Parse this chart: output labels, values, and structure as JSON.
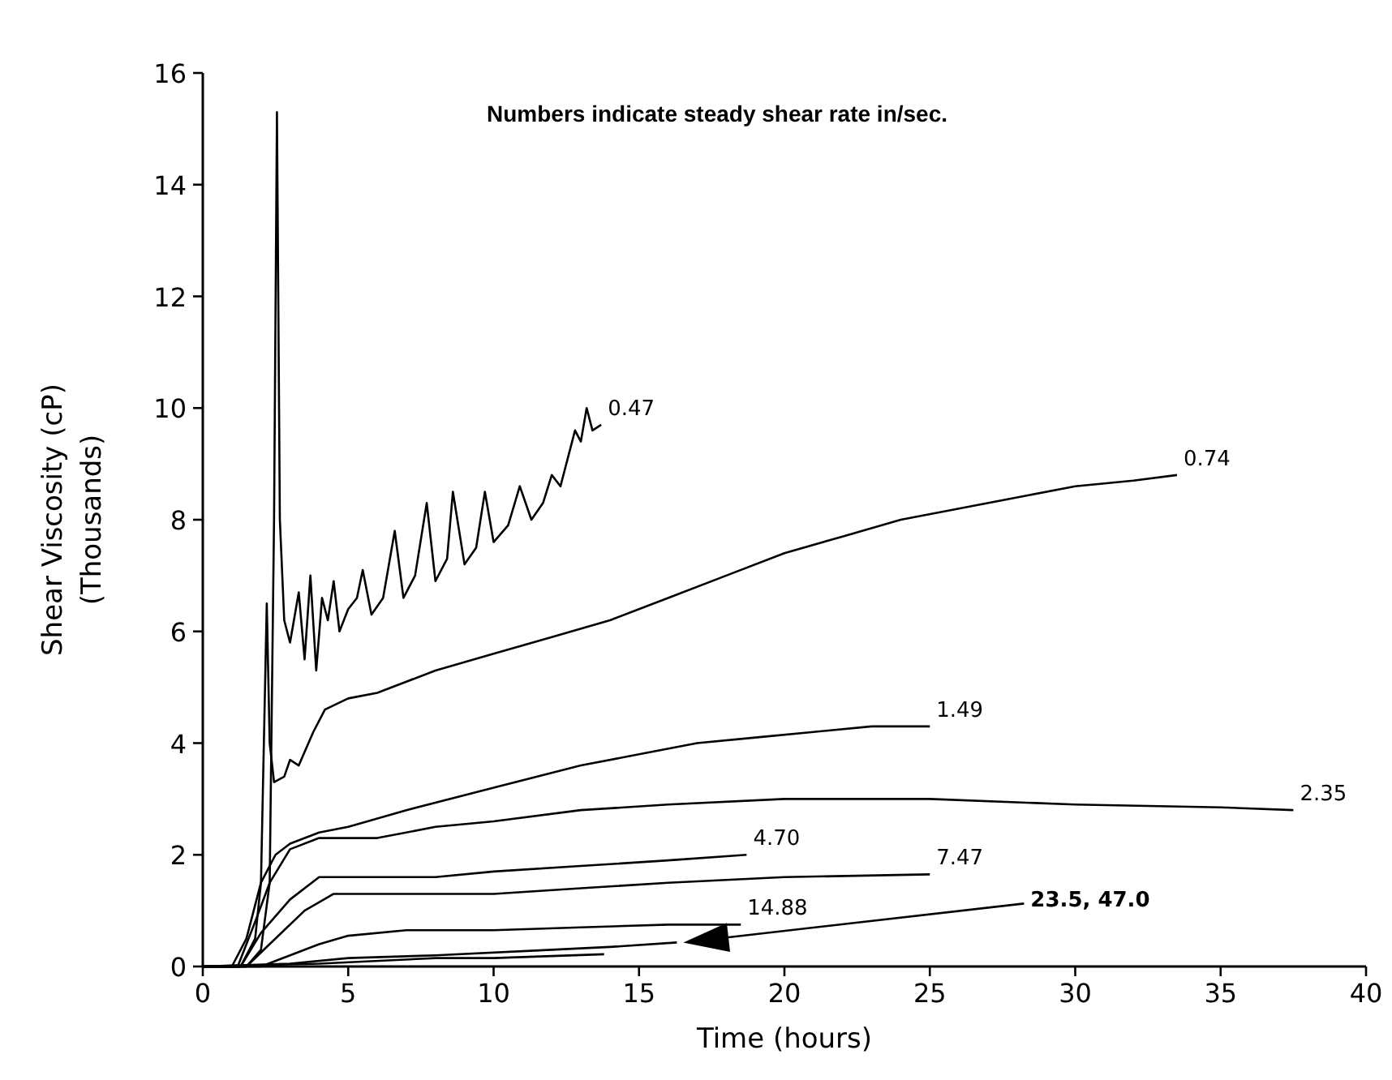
{
  "chart_data": {
    "type": "line",
    "xlabel": "Time (hours)",
    "ylabel": "Shear Viscosity (cP)\n(Thousands)",
    "xlim": [
      0,
      40
    ],
    "xticks": [
      0,
      5,
      10,
      15,
      20,
      25,
      30,
      35,
      40
    ],
    "ylim": [
      0,
      16
    ],
    "yticks": [
      0,
      2,
      4,
      6,
      8,
      10,
      12,
      14,
      16
    ],
    "grid": false,
    "marker": "none",
    "line_style": "solid",
    "annotations": [
      "Numbers indicate steady shear rate in/sec.",
      "23.5,  47.0"
    ],
    "series": [
      {
        "name": "0.47",
        "color": "#000000",
        "x": [
          0,
          1.5,
          2.0,
          2.3,
          2.45,
          2.55,
          2.65,
          2.8,
          3.0,
          3.3,
          3.5,
          3.7,
          3.9,
          4.1,
          4.3,
          4.5,
          4.7,
          5.0,
          5.3,
          5.5,
          5.8,
          6.2,
          6.6,
          6.9,
          7.3,
          7.7,
          8.0,
          8.4,
          8.6,
          9.0,
          9.4,
          9.7,
          10.0,
          10.5,
          10.9,
          11.3,
          11.7,
          12.0,
          12.3,
          12.8,
          13.0,
          13.2,
          13.4,
          13.7
        ],
        "values": [
          0,
          0,
          0.3,
          1.5,
          8,
          15.3,
          8,
          6.2,
          5.8,
          6.7,
          5.5,
          7.0,
          5.3,
          6.6,
          6.2,
          6.9,
          6.0,
          6.4,
          6.6,
          7.1,
          6.3,
          6.6,
          7.8,
          6.6,
          7.0,
          8.3,
          6.9,
          7.3,
          8.5,
          7.2,
          7.5,
          8.5,
          7.6,
          7.9,
          8.6,
          8.0,
          8.3,
          8.8,
          8.6,
          9.6,
          9.4,
          10.0,
          9.6,
          9.7
        ]
      },
      {
        "name": "0.74",
        "color": "#000000",
        "x": [
          0,
          1.3,
          1.8,
          2.0,
          2.1,
          2.2,
          2.3,
          2.45,
          2.8,
          3.0,
          3.3,
          3.8,
          4.2,
          5,
          6,
          7,
          8,
          10,
          12,
          14,
          16,
          18,
          20,
          22,
          24,
          26,
          28,
          30,
          32,
          33.5
        ],
        "values": [
          0,
          0,
          0.5,
          1.5,
          4,
          6.5,
          4,
          3.3,
          3.4,
          3.7,
          3.6,
          4.2,
          4.6,
          4.8,
          4.9,
          5.1,
          5.3,
          5.6,
          5.9,
          6.2,
          6.6,
          7.0,
          7.4,
          7.7,
          8.0,
          8.2,
          8.4,
          8.6,
          8.7,
          8.8
        ]
      },
      {
        "name": "1.49",
        "color": "#000000",
        "x": [
          0,
          1.0,
          1.5,
          2.0,
          2.5,
          3,
          4,
          5,
          7,
          10,
          13,
          15,
          17,
          19,
          21,
          23,
          25
        ],
        "values": [
          0,
          0,
          0.5,
          1.5,
          2.0,
          2.2,
          2.4,
          2.5,
          2.8,
          3.2,
          3.6,
          3.8,
          4.0,
          4.1,
          4.2,
          4.3,
          4.3
        ]
      },
      {
        "name": "2.35",
        "color": "#000000",
        "x": [
          0,
          1.2,
          1.8,
          2.3,
          3,
          4,
          6,
          8,
          10,
          13,
          16,
          20,
          25,
          30,
          35,
          37.5
        ],
        "values": [
          0,
          0,
          0.8,
          1.5,
          2.1,
          2.3,
          2.3,
          2.5,
          2.6,
          2.8,
          2.9,
          3.0,
          3.0,
          2.9,
          2.85,
          2.8
        ]
      },
      {
        "name": "4.70",
        "color": "#000000",
        "x": [
          0,
          1.3,
          2,
          3,
          4,
          5,
          8,
          10,
          13,
          16,
          18.7
        ],
        "values": [
          0,
          0,
          0.6,
          1.2,
          1.6,
          1.6,
          1.6,
          1.7,
          1.8,
          1.9,
          2.0
        ]
      },
      {
        "name": "7.47",
        "color": "#000000",
        "x": [
          0,
          1.5,
          2.5,
          3.5,
          4.5,
          7,
          10,
          13,
          16,
          20,
          25
        ],
        "values": [
          0,
          0,
          0.5,
          1.0,
          1.3,
          1.3,
          1.3,
          1.4,
          1.5,
          1.6,
          1.65
        ]
      },
      {
        "name": "14.88",
        "color": "#000000",
        "x": [
          0,
          2,
          3,
          4,
          5,
          7,
          10,
          13,
          16,
          18.5
        ],
        "values": [
          0,
          0,
          0.2,
          0.4,
          0.55,
          0.65,
          0.65,
          0.7,
          0.75,
          0.75
        ]
      },
      {
        "color": "#000000",
        "x": [
          0,
          3,
          5,
          8,
          12,
          14,
          16.3
        ],
        "values": [
          0,
          0.05,
          0.15,
          0.2,
          0.3,
          0.35,
          0.43
        ]
      },
      {
        "color": "#000000",
        "x": [
          0,
          4,
          8,
          10,
          13.8
        ],
        "values": [
          0,
          0.05,
          0.15,
          0.15,
          0.22
        ]
      }
    ]
  }
}
